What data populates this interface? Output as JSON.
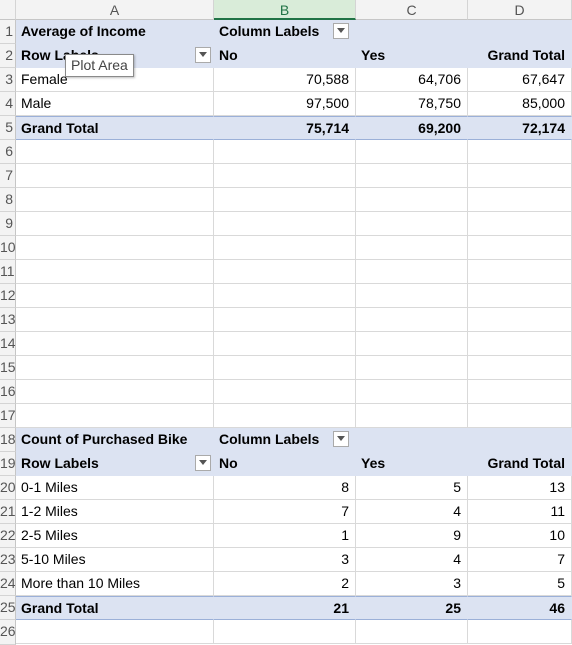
{
  "columns": [
    "A",
    "B",
    "C",
    "D"
  ],
  "row_numbers": [
    "1",
    "2",
    "3",
    "4",
    "5",
    "6",
    "7",
    "8",
    "9",
    "10",
    "11",
    "12",
    "13",
    "14",
    "15",
    "16",
    "17",
    "18",
    "19",
    "20",
    "21",
    "22",
    "23",
    "24",
    "25",
    "26"
  ],
  "tooltip": "Plot Area",
  "pivot1": {
    "title": "Average of Income",
    "column_labels": "Column Labels",
    "row_labels": "Row Labels",
    "headers": [
      "No",
      "Yes",
      "Grand Total"
    ],
    "rows": [
      {
        "label": "Female",
        "values": [
          "70,588",
          "64,706",
          "67,647"
        ]
      },
      {
        "label": "Male",
        "values": [
          "97,500",
          "78,750",
          "85,000"
        ]
      }
    ],
    "grand_total": {
      "label": "Grand Total",
      "values": [
        "75,714",
        "69,200",
        "72,174"
      ]
    }
  },
  "pivot2": {
    "title": "Count of Purchased Bike",
    "column_labels": "Column Labels",
    "row_labels": "Row Labels",
    "headers": [
      "No",
      "Yes",
      "Grand Total"
    ],
    "rows": [
      {
        "label": "0-1 Miles",
        "values": [
          "8",
          "5",
          "13"
        ]
      },
      {
        "label": "1-2 Miles",
        "values": [
          "7",
          "4",
          "11"
        ]
      },
      {
        "label": "2-5 Miles",
        "values": [
          "1",
          "9",
          "10"
        ]
      },
      {
        "label": "5-10 Miles",
        "values": [
          "3",
          "4",
          "7"
        ]
      },
      {
        "label": "More than 10 Miles",
        "values": [
          "2",
          "3",
          "5"
        ]
      }
    ],
    "grand_total": {
      "label": "Grand Total",
      "values": [
        "21",
        "25",
        "46"
      ]
    }
  }
}
